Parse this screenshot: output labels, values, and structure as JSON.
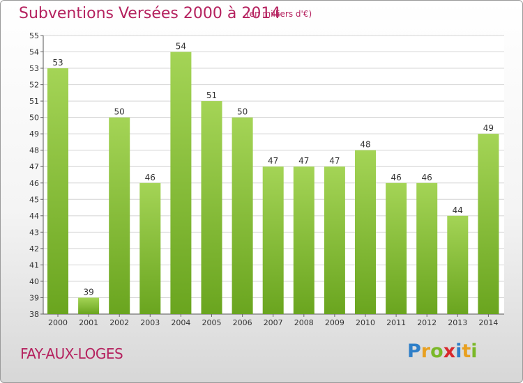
{
  "header": {
    "title": "Subventions Versées 2000 à 2014",
    "subtitle": "(en milliers d'€)"
  },
  "footer": {
    "commune": "FAY-AUX-LOGES",
    "logo_text": "Proxiti",
    "logo_letters": [
      {
        "ch": "P",
        "color": "#2f7fc8"
      },
      {
        "ch": "r",
        "color": "#e8a020"
      },
      {
        "ch": "o",
        "color": "#7ab828"
      },
      {
        "ch": "x",
        "color": "#d8282c"
      },
      {
        "ch": "i",
        "color": "#2f7fc8"
      },
      {
        "ch": "t",
        "color": "#e8a020"
      },
      {
        "ch": "i",
        "color": "#7ab828"
      }
    ]
  },
  "colors": {
    "accent": "#b5225f",
    "bar_light": "#a4d456",
    "bar_dark": "#6aa51f",
    "grid": "#d4d4d4"
  },
  "chart_data": {
    "type": "bar",
    "title": "Subventions Versées 2000 à 2014",
    "subtitle": "(en milliers d'€)",
    "xlabel": "",
    "ylabel": "",
    "categories": [
      "2000",
      "2001",
      "2002",
      "2003",
      "2004",
      "2005",
      "2006",
      "2007",
      "2008",
      "2009",
      "2010",
      "2011",
      "2012",
      "2013",
      "2014"
    ],
    "values": [
      53,
      39,
      50,
      46,
      54,
      51,
      50,
      47,
      47,
      47,
      48,
      46,
      46,
      44,
      49
    ],
    "ylim": [
      38,
      55
    ],
    "yticks": [
      38,
      39,
      40,
      41,
      42,
      43,
      44,
      45,
      46,
      47,
      48,
      49,
      50,
      51,
      52,
      53,
      54,
      55
    ],
    "grid": true,
    "legend": "none"
  }
}
